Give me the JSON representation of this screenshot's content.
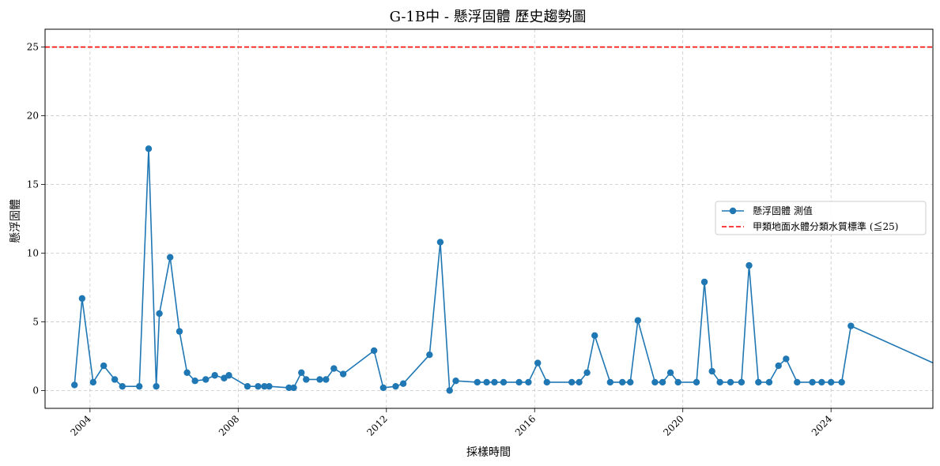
{
  "chart_data": {
    "type": "line",
    "title": "G-1B中 - 懸浮固體 歷史趨勢圖",
    "xlabel": "採樣時間",
    "ylabel": "懸浮固體",
    "x_range": [
      "2002-10-15",
      "2026-10-01"
    ],
    "ylim": [
      -1.3,
      26.3
    ],
    "x_ticks": [
      "2004-01-01",
      "2008-01-01",
      "2012-01-01",
      "2016-01-01",
      "2020-01-01",
      "2024-01-01"
    ],
    "x_tick_labels": [
      "2004",
      "2008",
      "2012",
      "2016",
      "2020",
      "2024"
    ],
    "y_ticks": [
      0,
      5,
      10,
      15,
      20,
      25
    ],
    "y_tick_labels": [
      "0",
      "5",
      "10",
      "15",
      "20",
      "25"
    ],
    "grid": true,
    "legend_position": "center-right",
    "series": [
      {
        "name": "懸浮固體 測值",
        "color": "#1f77b4",
        "marker": "circle",
        "points": [
          [
            "2003-08-01",
            0.4
          ],
          [
            "2003-10-15",
            6.7
          ],
          [
            "2004-02-01",
            0.6
          ],
          [
            "2004-05-15",
            1.8
          ],
          [
            "2004-09-01",
            0.8
          ],
          [
            "2004-11-15",
            0.3
          ],
          [
            "2005-05-01",
            0.3
          ],
          [
            "2005-08-01",
            17.6
          ],
          [
            "2005-10-15",
            0.3
          ],
          [
            "2005-11-15",
            5.6
          ],
          [
            "2006-03-01",
            9.7
          ],
          [
            "2006-06-01",
            4.3
          ],
          [
            "2006-08-15",
            1.3
          ],
          [
            "2006-11-01",
            0.7
          ],
          [
            "2007-02-15",
            0.8
          ],
          [
            "2007-05-15",
            1.1
          ],
          [
            "2007-08-15",
            0.9
          ],
          [
            "2007-10-01",
            1.1
          ],
          [
            "2008-04-01",
            0.3
          ],
          [
            "2008-07-15",
            0.3
          ],
          [
            "2008-09-15",
            0.3
          ],
          [
            "2008-11-01",
            0.3
          ],
          [
            "2009-05-15",
            0.2
          ],
          [
            "2009-07-01",
            0.2
          ],
          [
            "2009-09-15",
            1.3
          ],
          [
            "2009-11-01",
            0.8
          ],
          [
            "2010-03-15",
            0.8
          ],
          [
            "2010-05-15",
            0.8
          ],
          [
            "2010-08-01",
            1.6
          ],
          [
            "2010-11-01",
            1.2
          ],
          [
            "2011-09-01",
            2.9
          ],
          [
            "2011-12-01",
            0.2
          ],
          [
            "2012-04-01",
            0.3
          ],
          [
            "2012-06-15",
            0.5
          ],
          [
            "2013-03-01",
            2.6
          ],
          [
            "2013-06-15",
            10.8
          ],
          [
            "2013-09-15",
            0.0
          ],
          [
            "2013-11-15",
            0.7
          ],
          [
            "2014-06-15",
            0.6
          ],
          [
            "2014-09-15",
            0.6
          ],
          [
            "2014-12-01",
            0.6
          ],
          [
            "2015-03-01",
            0.6
          ],
          [
            "2015-08-01",
            0.6
          ],
          [
            "2015-11-01",
            0.6
          ],
          [
            "2016-02-01",
            2.0
          ],
          [
            "2016-05-01",
            0.6
          ],
          [
            "2017-01-01",
            0.6
          ],
          [
            "2017-03-15",
            0.6
          ],
          [
            "2017-06-01",
            1.3
          ],
          [
            "2017-08-15",
            4.0
          ],
          [
            "2018-01-15",
            0.6
          ],
          [
            "2018-05-15",
            0.6
          ],
          [
            "2018-08-01",
            0.6
          ],
          [
            "2018-10-15",
            5.1
          ],
          [
            "2019-04-01",
            0.6
          ],
          [
            "2019-06-15",
            0.6
          ],
          [
            "2019-09-01",
            1.3
          ],
          [
            "2019-11-15",
            0.6
          ],
          [
            "2020-05-15",
            0.6
          ],
          [
            "2020-08-01",
            7.9
          ],
          [
            "2020-10-15",
            1.4
          ],
          [
            "2021-01-01",
            0.6
          ],
          [
            "2021-04-15",
            0.6
          ],
          [
            "2021-08-01",
            0.6
          ],
          [
            "2021-10-15",
            9.1
          ],
          [
            "2022-01-15",
            0.6
          ],
          [
            "2022-05-01",
            0.6
          ],
          [
            "2022-08-01",
            1.8
          ],
          [
            "2022-10-15",
            2.3
          ],
          [
            "2023-02-01",
            0.6
          ],
          [
            "2023-07-01",
            0.6
          ],
          [
            "2023-10-01",
            0.6
          ],
          [
            "2024-01-01",
            0.6
          ],
          [
            "2024-04-15",
            0.6
          ],
          [
            "2024-07-15",
            4.7
          ],
          [
            "2027-12-01",
            0.6
          ]
        ]
      },
      {
        "name": "甲類地面水體分類水質標準 (≦25)",
        "color": "#ff0000",
        "style": "dashed",
        "constant_y": 25
      }
    ]
  }
}
